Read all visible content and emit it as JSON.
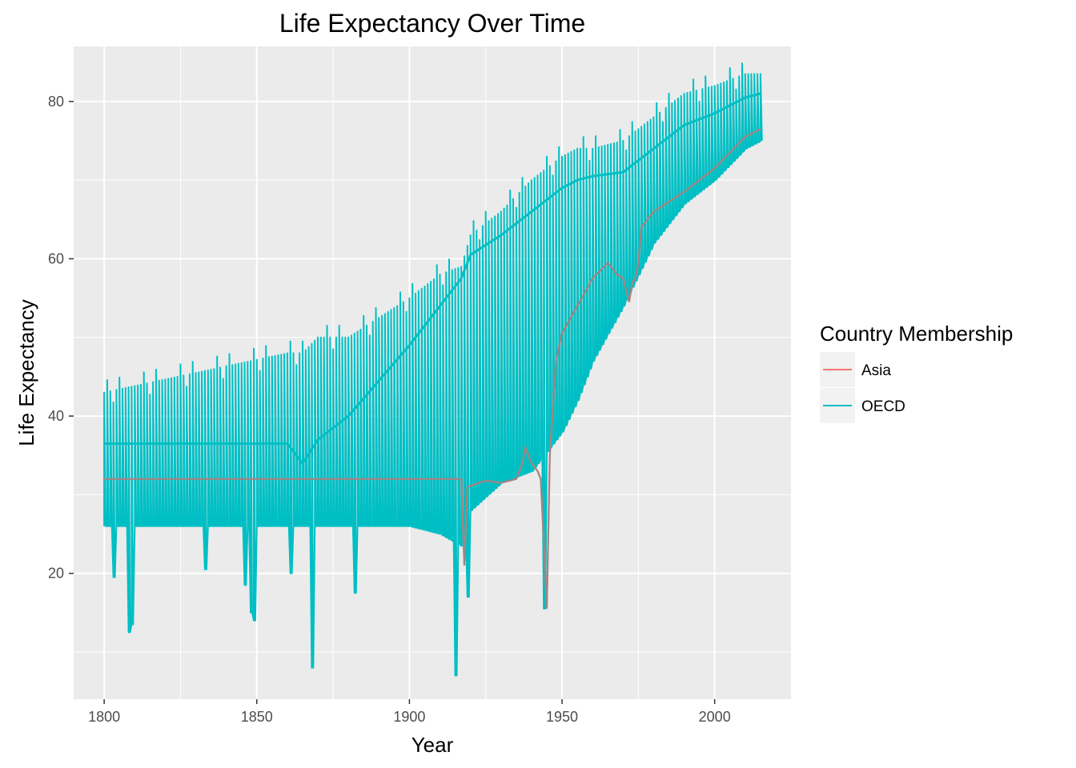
{
  "chart_data": {
    "type": "line",
    "title": "Life Expectancy Over Time",
    "xlabel": "Year",
    "ylabel": "Life Expectancy",
    "xlim": [
      1790,
      2025
    ],
    "ylim": [
      4,
      87
    ],
    "xticks": [
      1800,
      1850,
      1900,
      1950,
      2000
    ],
    "yticks": [
      20,
      40,
      60,
      80
    ],
    "grid": true,
    "legend": {
      "title": "Country Membership",
      "position": "right"
    },
    "series": [
      {
        "name": "Asia",
        "color": "#F8766D",
        "x": [
          1800,
          1917,
          1918,
          1919,
          1925,
          1930,
          1935,
          1937,
          1938,
          1940,
          1942,
          1943,
          1944,
          1945,
          1946,
          1948,
          1950,
          1955,
          1960,
          1965,
          1968,
          1970,
          1972,
          1973,
          1974,
          1975,
          1976,
          1980,
          1990,
          2000,
          2010,
          2015
        ],
        "y": [
          32,
          32,
          21,
          31,
          31.8,
          31.5,
          32,
          34,
          36,
          34,
          33,
          32,
          24,
          15.5,
          35,
          47,
          50.5,
          54,
          57.5,
          59.5,
          58,
          57.5,
          54.5,
          57,
          57.5,
          59.5,
          64,
          66,
          68.5,
          71.5,
          75.5,
          76.5
        ]
      },
      {
        "name": "OECD",
        "color": "#00BFC4",
        "x": [
          1800,
          1860,
          1865,
          1870,
          1880,
          1900,
          1910,
          1917,
          1920,
          1930,
          1940,
          1950,
          1955,
          1960,
          1970,
          1980,
          1990,
          2000,
          2010,
          2015
        ],
        "y": [
          36.5,
          36.5,
          34,
          37,
          40,
          49,
          54,
          57.5,
          60.5,
          63,
          66,
          69,
          70,
          70.5,
          71,
          74,
          77,
          78.5,
          80.5,
          81
        ],
        "max": [
          43,
          48,
          48,
          50,
          50,
          55,
          58,
          59,
          63,
          66,
          70,
          73,
          74,
          74,
          75,
          78,
          81,
          82,
          83.5,
          83.5
        ],
        "min": [
          26,
          26,
          26,
          26,
          26,
          26,
          25,
          23.5,
          28,
          31.5,
          33,
          38,
          42,
          47,
          54,
          62,
          67,
          70,
          74,
          75
        ]
      }
    ],
    "gray_line": {
      "x": [
        1800,
        1917,
        1918,
        1919,
        1925,
        1930,
        1935,
        1937,
        1938,
        1940,
        1942,
        1943,
        1944,
        1945,
        1946,
        1948,
        1950,
        1955,
        1960,
        1965,
        1968,
        1970,
        1972,
        1973,
        1974,
        1975,
        1976,
        1980,
        1990,
        2000,
        2010,
        2015
      ],
      "y": [
        32,
        32,
        21,
        31,
        31.8,
        31.5,
        32,
        34,
        36,
        34,
        33,
        32,
        24,
        15.5,
        35,
        47,
        50.5,
        54,
        57.5,
        59.5,
        58,
        57.5,
        54.5,
        57,
        57.5,
        59.5,
        64,
        66,
        68.5,
        71.5,
        75.5,
        76.5
      ]
    },
    "notable_lows": [
      {
        "x": 1803,
        "y": 19.5
      },
      {
        "x": 1808,
        "y": 12.5
      },
      {
        "x": 1809,
        "y": 13.5
      },
      {
        "x": 1833,
        "y": 20.5
      },
      {
        "x": 1846,
        "y": 18.5
      },
      {
        "x": 1848,
        "y": 15
      },
      {
        "x": 1849,
        "y": 14
      },
      {
        "x": 1861,
        "y": 20
      },
      {
        "x": 1868,
        "y": 8
      },
      {
        "x": 1882,
        "y": 17.5
      },
      {
        "x": 1915,
        "y": 7
      },
      {
        "x": 1919,
        "y": 17
      },
      {
        "x": 1944,
        "y": 15.5
      }
    ]
  }
}
